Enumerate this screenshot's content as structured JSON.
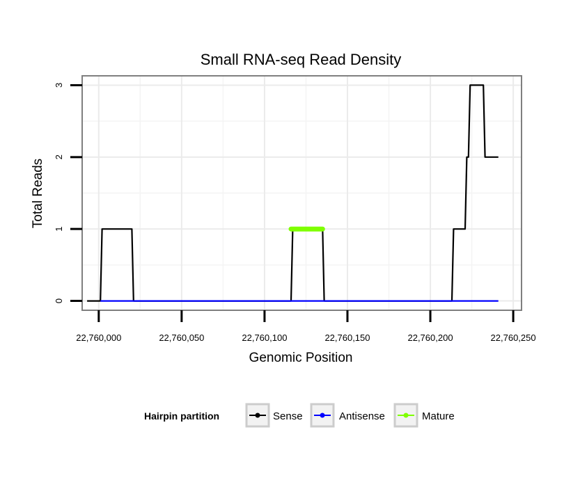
{
  "chart_data": {
    "type": "line",
    "title": "Small RNA-seq Read Density",
    "xlabel": "Genomic Position",
    "ylabel": "Total Reads",
    "xlim": [
      22759990,
      22760255
    ],
    "ylim": [
      -0.13,
      3.13
    ],
    "x_ticks": [
      22760000,
      22760050,
      22760100,
      22760150,
      22760200,
      22760250
    ],
    "x_tick_labels": [
      "22,760,000",
      "22,760,050",
      "22,760,100",
      "22,760,150",
      "22,760,200",
      "22,760,250"
    ],
    "y_ticks": [
      0,
      1,
      2,
      3
    ],
    "y_tick_labels": [
      "0",
      "1",
      "2",
      "3"
    ],
    "grid": true,
    "legend": {
      "title": "Hairpin partition",
      "position": "bottom",
      "entries": [
        "Sense",
        "Antisense",
        "Mature"
      ]
    },
    "series": [
      {
        "name": "Sense",
        "color": "#000000",
        "x": [
          22759993,
          22760001,
          22760002,
          22760020,
          22760021,
          22760116,
          22760117,
          22760135,
          22760136,
          22760213,
          22760214,
          22760221,
          22760222,
          22760223,
          22760224,
          22760232,
          22760233,
          22760241
        ],
        "y": [
          0,
          0,
          1,
          1,
          0,
          0,
          1,
          1,
          0,
          0,
          1,
          1,
          2,
          2,
          3,
          3,
          2,
          2
        ]
      },
      {
        "name": "Antisense",
        "color": "#0000ff",
        "x": [
          22760001,
          22760241
        ],
        "y": [
          0,
          0
        ]
      },
      {
        "name": "Mature",
        "color": "#7fff00",
        "x": [
          22760116,
          22760135
        ],
        "y": [
          1,
          1
        ]
      }
    ]
  }
}
